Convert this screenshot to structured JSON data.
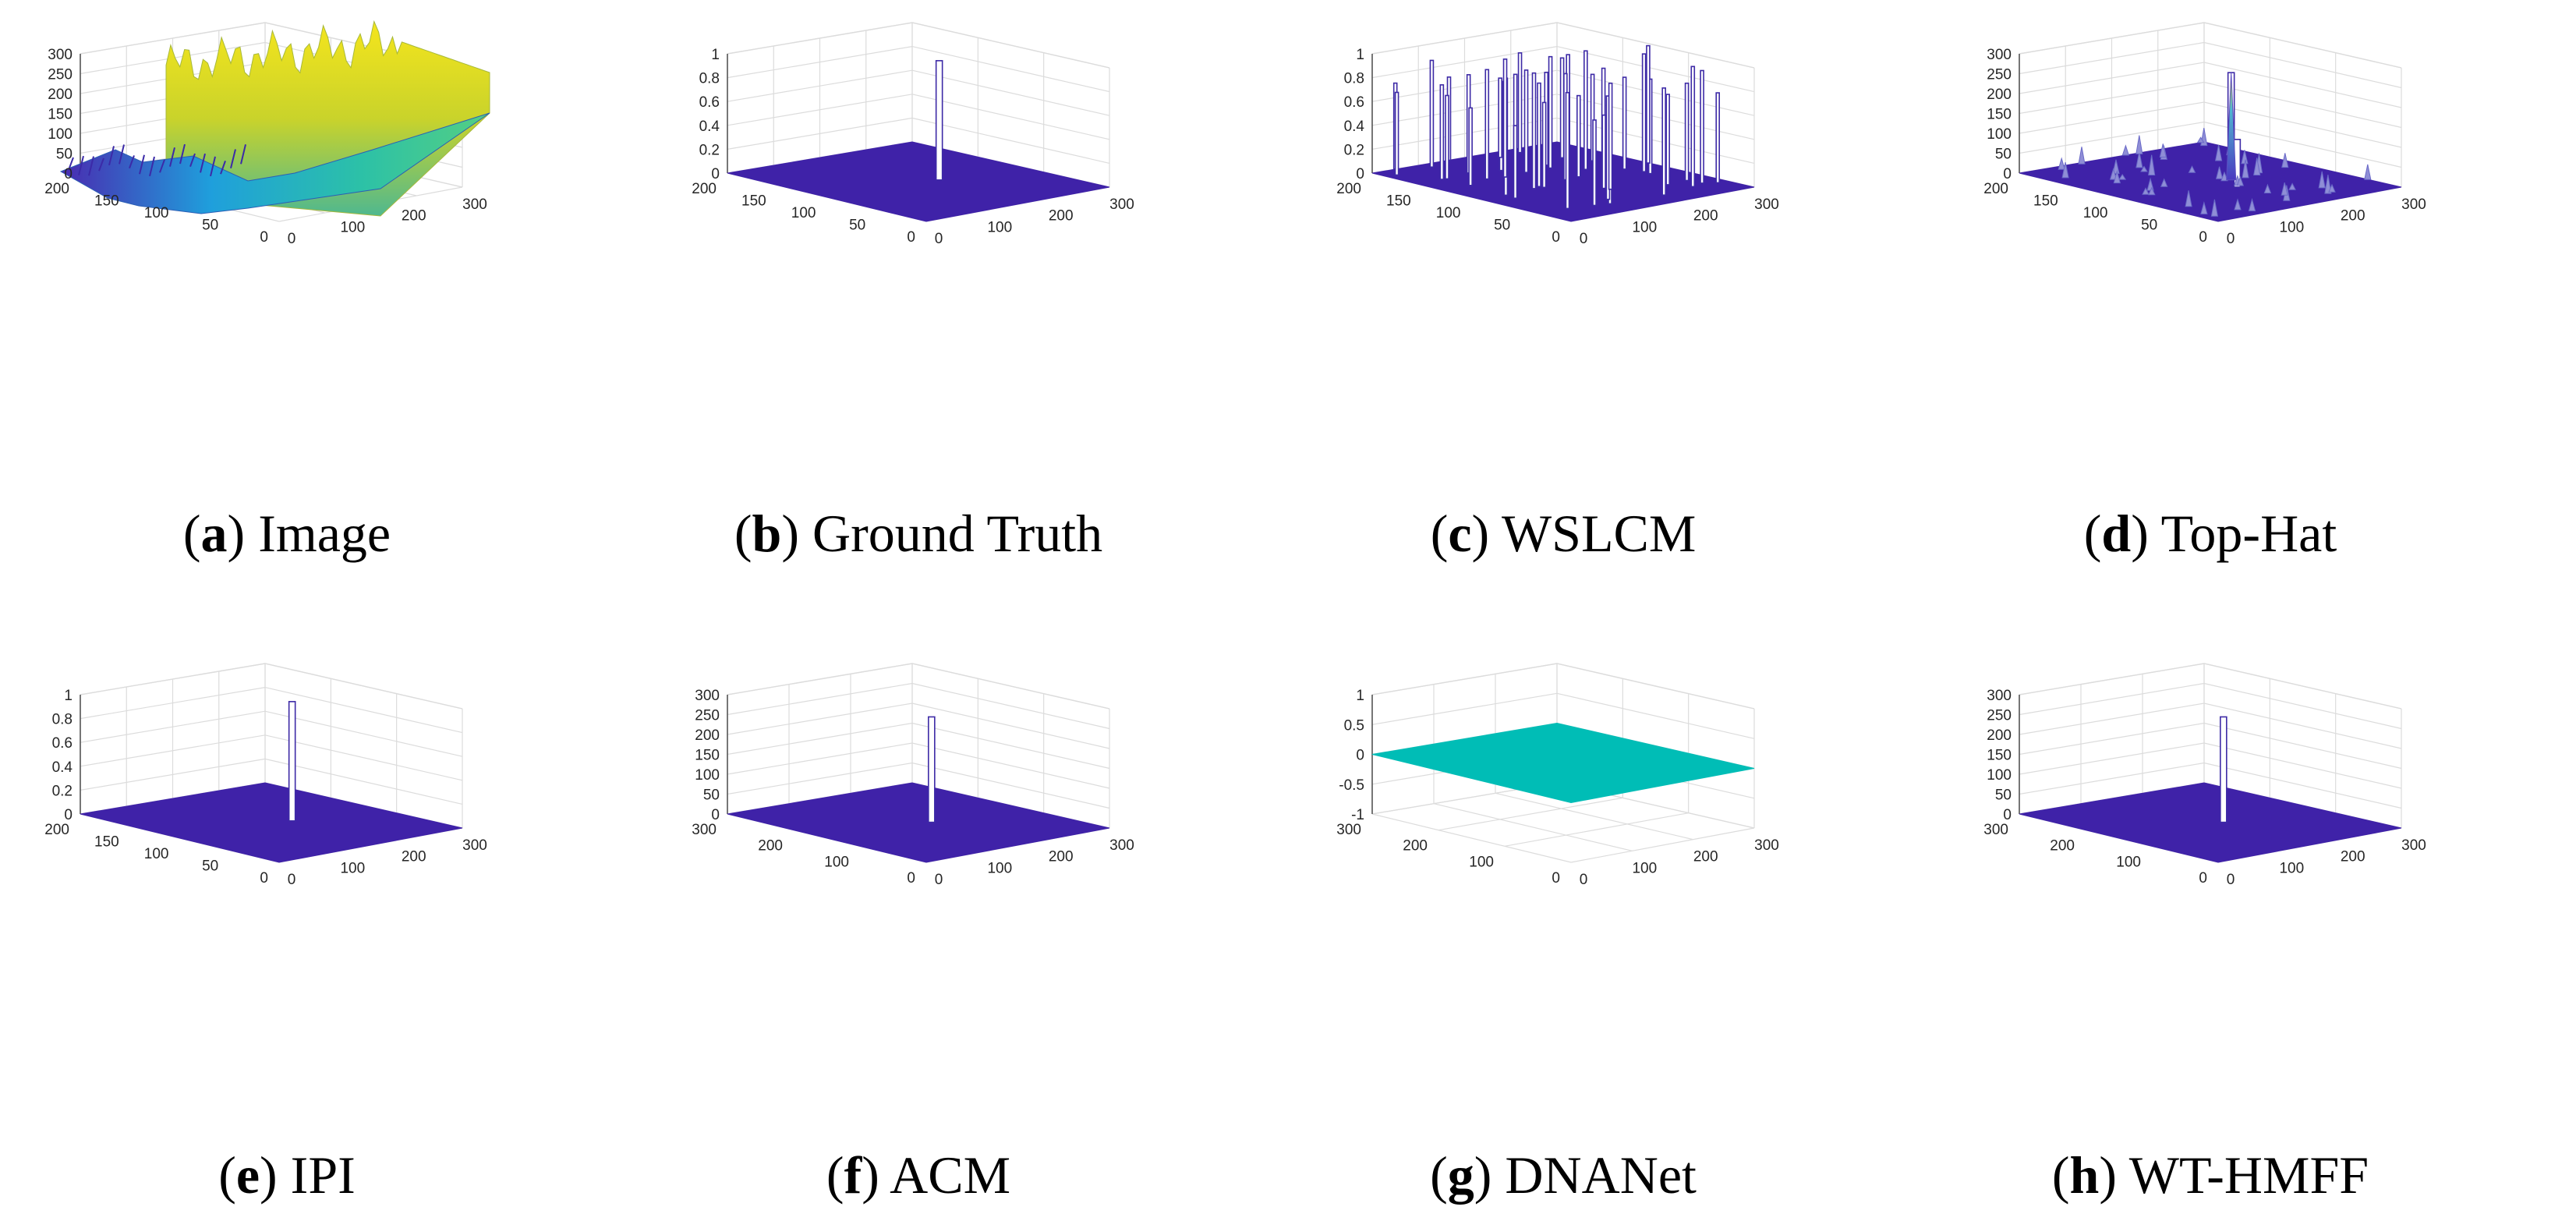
{
  "chart_data": [
    {
      "type": "surface3d",
      "caption_letter": "a",
      "caption_text": "Image",
      "zlim": [
        0,
        300
      ],
      "z_ticks": [
        "0",
        "50",
        "100",
        "150",
        "200",
        "250",
        "300"
      ],
      "x_ticks": [
        "0",
        "100",
        "200",
        "300"
      ],
      "y_ticks": [
        "0",
        "50",
        "100",
        "150",
        "200"
      ],
      "surface": "infrared image intensity surface (~50–260, bright ridge ~200–260)"
    },
    {
      "type": "surface3d",
      "caption_letter": "b",
      "caption_text": "Ground Truth",
      "zlim": [
        0,
        1
      ],
      "z_ticks": [
        "0",
        "0.2",
        "0.4",
        "0.6",
        "0.8",
        "1"
      ],
      "x_ticks": [
        "0",
        "100",
        "200",
        "300"
      ],
      "y_ticks": [
        "0",
        "50",
        "100",
        "150",
        "200"
      ],
      "spikes": [
        {
          "x": 160,
          "y": 115,
          "value": 1
        }
      ]
    },
    {
      "type": "surface3d",
      "caption_letter": "c",
      "caption_text": "WSLCM",
      "zlim": [
        0,
        1
      ],
      "z_ticks": [
        "0",
        "0.2",
        "0.4",
        "0.6",
        "0.8",
        "1"
      ],
      "x_ticks": [
        "0",
        "100",
        "200",
        "300"
      ],
      "y_ticks": [
        "0",
        "50",
        "100",
        "150",
        "200"
      ],
      "spikes_description": "many spikes of height ~0.6–1 scattered over the plane"
    },
    {
      "type": "surface3d",
      "caption_letter": "d",
      "caption_text": "Top-Hat",
      "zlim": [
        0,
        300
      ],
      "z_ticks": [
        "0",
        "50",
        "100",
        "150",
        "200",
        "250",
        "300"
      ],
      "x_ticks": [
        "0",
        "100",
        "200",
        "300"
      ],
      "y_ticks": [
        "0",
        "50",
        "100",
        "150",
        "200"
      ],
      "spikes": [
        {
          "x": 160,
          "y": 115,
          "value": 270
        },
        {
          "x": 190,
          "y": 100,
          "value": 120
        }
      ]
    },
    {
      "type": "surface3d",
      "caption_letter": "e",
      "caption_text": "IPI",
      "zlim": [
        0,
        1
      ],
      "z_ticks": [
        "0",
        "0.2",
        "0.4",
        "0.6",
        "0.8",
        "1"
      ],
      "x_ticks": [
        "0",
        "100",
        "200",
        "300"
      ],
      "y_ticks": [
        "0",
        "50",
        "100",
        "150",
        "200"
      ],
      "spikes": [
        {
          "x": 160,
          "y": 115,
          "value": 1
        }
      ]
    },
    {
      "type": "surface3d",
      "caption_letter": "f",
      "caption_text": "ACM",
      "zlim": [
        0,
        300
      ],
      "z_ticks": [
        "0",
        "50",
        "100",
        "150",
        "200",
        "250",
        "300"
      ],
      "x_ticks": [
        "0",
        "100",
        "200",
        "300"
      ],
      "y_ticks": [
        "0",
        "100",
        "200",
        "300"
      ],
      "spikes": [
        {
          "x": 160,
          "y": 160,
          "value": 265
        }
      ]
    },
    {
      "type": "surface3d",
      "caption_letter": "g",
      "caption_text": "DNANet",
      "zlim": [
        -1,
        1
      ],
      "z_ticks": [
        "-1",
        "-0.5",
        "0",
        "0.5",
        "1"
      ],
      "x_ticks": [
        "0",
        "100",
        "200",
        "300"
      ],
      "y_ticks": [
        "0",
        "100",
        "200",
        "300"
      ],
      "surface": "flat plane at 0"
    },
    {
      "type": "surface3d",
      "caption_letter": "h",
      "caption_text": "WT-HMFF",
      "zlim": [
        0,
        300
      ],
      "z_ticks": [
        "0",
        "50",
        "100",
        "150",
        "200",
        "250",
        "300"
      ],
      "x_ticks": [
        "0",
        "100",
        "200",
        "300"
      ],
      "y_ticks": [
        "0",
        "100",
        "200",
        "300"
      ],
      "spikes": [
        {
          "x": 160,
          "y": 160,
          "value": 265
        }
      ]
    }
  ],
  "colors": {
    "plane": "#3f22a8",
    "plane_edge": "#5a45c2",
    "spike": "#ffffff",
    "spike_edge": "#3d2aa6",
    "dnanet_plane": "#00bdb6",
    "grid": "#dcdcdc",
    "axis": "#262626"
  }
}
